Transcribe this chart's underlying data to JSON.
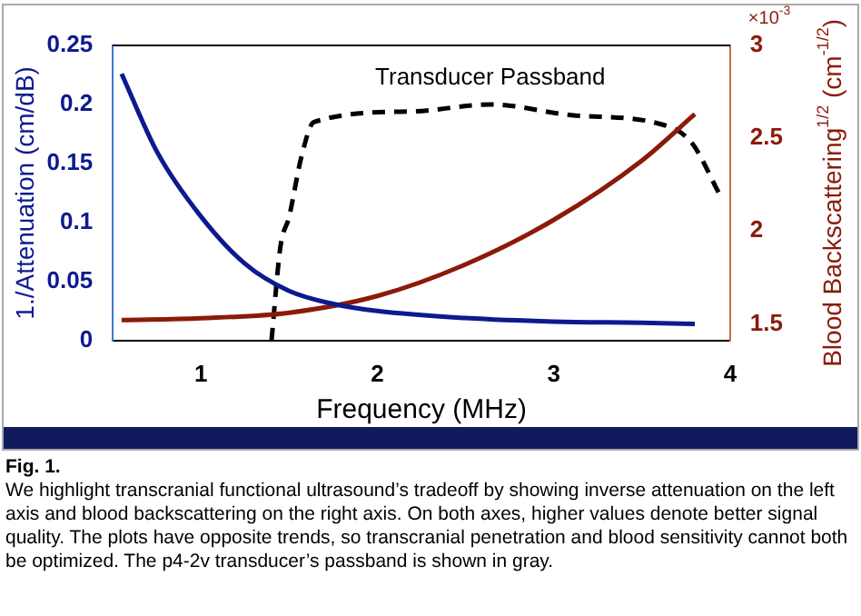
{
  "chart_data": {
    "type": "line",
    "xlabel": "Frequency (MHz)",
    "ylabel": "1./Attenuation (cm/dB)",
    "y2label": "Blood Backscattering$^{1/2}$ (cm$^{-1/2}$)",
    "xlim": [
      0.5,
      4
    ],
    "xticks": [
      1,
      2,
      3,
      4
    ],
    "ylim": [
      0,
      0.25
    ],
    "yticks": [
      0,
      0.05,
      0.1,
      0.15,
      0.2,
      0.25
    ],
    "y2lim": [
      1.41,
      3
    ],
    "y2ticks": [
      1.5,
      2,
      2.5,
      3
    ],
    "grid": false,
    "legend": false,
    "marker": "none",
    "series": [
      {
        "color": "#0d1a8f",
        "line_style": "solid",
        "x": [
          0.55,
          0.75,
          1.0,
          1.25,
          1.5,
          1.75,
          2.0,
          2.5,
          3.0,
          3.5,
          3.8
        ],
        "values": [
          0.226,
          0.16,
          0.105,
          0.065,
          0.042,
          0.031,
          0.025,
          0.019,
          0.016,
          0.015,
          0.014
        ]
      },
      {
        "color": "#8b1a0a",
        "line_style": "solid",
        "axis": "y2",
        "x": [
          0.55,
          1.0,
          1.5,
          2.0,
          2.5,
          3.0,
          3.5,
          3.8
        ],
        "values": [
          1.52,
          1.53,
          1.56,
          1.65,
          1.82,
          2.06,
          2.38,
          2.63
        ]
      },
      {
        "name": "Transducer Passband",
        "color": "#000000",
        "line_style": "dashed",
        "x": [
          1.4,
          1.45,
          1.5,
          1.57,
          1.64,
          2.19,
          2.64,
          3.1,
          3.59,
          3.78,
          3.94
        ],
        "values": [
          0,
          0.079,
          0.105,
          0.156,
          0.185,
          0.194,
          0.2,
          0.191,
          0.184,
          0.168,
          0.124
        ]
      }
    ],
    "annotations": [
      "×10$^{-3}$",
      "Fig. 1.",
      "We highlight transcranial functional ultrasound’s tradeoff by showing inverse attenuation on the left axis and blood backscattering on the right axis. On both axes, higher values denote better signal quality. The plots have opposite trends, so transcranial penetration and blood sensitivity cannot both be optimized. The p4-2v transducer’s passband is shown in gray."
    ]
  }
}
